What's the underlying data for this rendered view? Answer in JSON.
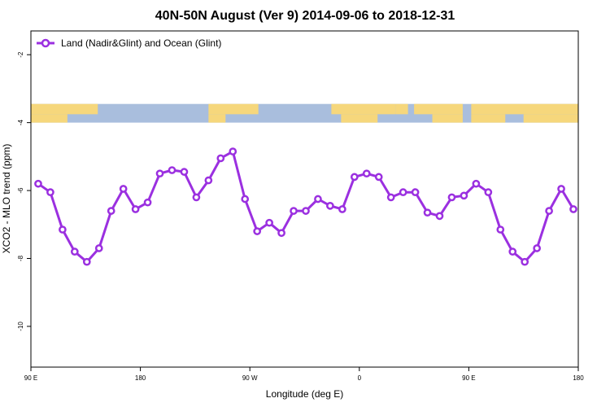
{
  "chart_data": {
    "type": "line",
    "title": "40N-50N August (Ver 9)   2014-09-06 to 2018-12-31",
    "xlabel": "Longitude (deg E)",
    "ylabel": "XCO2 - MLO trend (ppm)",
    "xlim": [
      90,
      540
    ],
    "ylim": [
      -11.2,
      -1.3
    ],
    "x_ticks": [
      {
        "value": 90,
        "label": "90 E"
      },
      {
        "value": 180,
        "label": "180"
      },
      {
        "value": 270,
        "label": "90 W"
      },
      {
        "value": 360,
        "label": "0"
      },
      {
        "value": 450,
        "label": "90 E"
      },
      {
        "value": 540,
        "label": "180"
      }
    ],
    "y_ticks": [
      {
        "value": -2,
        "label": "-2"
      },
      {
        "value": -4,
        "label": "-4"
      },
      {
        "value": -6,
        "label": "-6"
      },
      {
        "value": -8,
        "label": "-8"
      },
      {
        "value": -10,
        "label": "-10"
      }
    ],
    "grid": false,
    "legend_position": "top-left",
    "map_strip": {
      "y_top": -3.45,
      "y_bottom": -4.0,
      "ocean_color": "#a9bedd",
      "land_color": "#f6d77c"
    },
    "series": [
      {
        "name": "Land (Nadir&Glint) and Ocean (Glint)",
        "color": "#9b30e0",
        "x": [
          96,
          106,
          116,
          126,
          136,
          146,
          156,
          166,
          176,
          186,
          196,
          206,
          216,
          226,
          236,
          246,
          256,
          266,
          276,
          286,
          296,
          306,
          316,
          326,
          336,
          346,
          356,
          366,
          376,
          386,
          396,
          406,
          416,
          426,
          436,
          446,
          456,
          466,
          476,
          486,
          496,
          506,
          516,
          526,
          536
        ],
        "values": [
          -5.8,
          -6.05,
          -7.15,
          -7.8,
          -8.1,
          -7.7,
          -6.6,
          -5.95,
          -6.55,
          -6.35,
          -5.5,
          -5.4,
          -5.45,
          -6.2,
          -5.7,
          -5.05,
          -4.85,
          -6.25,
          -7.2,
          -6.95,
          -7.25,
          -6.6,
          -6.6,
          -6.25,
          -6.45,
          -6.55,
          -5.6,
          -5.5,
          -5.6,
          -6.2,
          -6.05,
          -6.05,
          -6.65,
          -6.75,
          -6.2,
          -6.15,
          -5.8,
          -6.05,
          -7.15,
          -7.8,
          -8.1,
          -7.7,
          -6.6,
          -5.95,
          -6.55
        ]
      }
    ]
  }
}
